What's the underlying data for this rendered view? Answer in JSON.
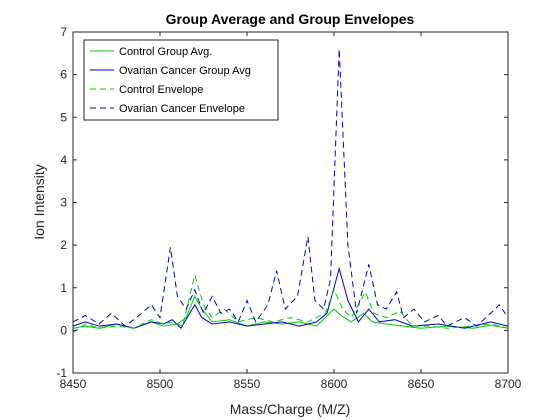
{
  "chart_data": {
    "type": "line",
    "title": "Group Average and Group Envelopes",
    "xlabel": "Mass/Charge (M/Z)",
    "ylabel": "Ion Intensity",
    "xlim": [
      8450,
      8700
    ],
    "ylim": [
      -1,
      7
    ],
    "xticks": [
      8450,
      8500,
      8550,
      8600,
      8650,
      8700
    ],
    "yticks": [
      -1,
      0,
      1,
      2,
      3,
      4,
      5,
      6,
      7
    ],
    "grid": false,
    "legend_position": "top-left",
    "series": [
      {
        "name": "Control Group Avg.",
        "color": "#00cc00",
        "dash": "solid",
        "points": [
          [
            8450,
            0.05
          ],
          [
            8457,
            0.1
          ],
          [
            8465,
            0.05
          ],
          [
            8475,
            0.15
          ],
          [
            8485,
            0.05
          ],
          [
            8495,
            0.2
          ],
          [
            8502,
            0.1
          ],
          [
            8510,
            0.15
          ],
          [
            8515,
            0.3
          ],
          [
            8520,
            0.8
          ],
          [
            8524,
            0.5
          ],
          [
            8530,
            0.2
          ],
          [
            8540,
            0.25
          ],
          [
            8550,
            0.1
          ],
          [
            8560,
            0.2
          ],
          [
            8570,
            0.15
          ],
          [
            8580,
            0.2
          ],
          [
            8590,
            0.1
          ],
          [
            8595,
            0.3
          ],
          [
            8600,
            0.5
          ],
          [
            8604,
            0.35
          ],
          [
            8610,
            0.2
          ],
          [
            8617,
            0.4
          ],
          [
            8622,
            0.2
          ],
          [
            8630,
            0.15
          ],
          [
            8640,
            0.1
          ],
          [
            8650,
            0.05
          ],
          [
            8665,
            0.1
          ],
          [
            8680,
            0.05
          ],
          [
            8690,
            0.12
          ],
          [
            8700,
            0.05
          ]
        ]
      },
      {
        "name": "Ovarian Cancer Group Avg",
        "color": "#0000cc",
        "dash": "solid",
        "points": [
          [
            8450,
            0.1
          ],
          [
            8457,
            0.2
          ],
          [
            8465,
            0.1
          ],
          [
            8475,
            0.15
          ],
          [
            8485,
            0.05
          ],
          [
            8495,
            0.2
          ],
          [
            8502,
            0.15
          ],
          [
            8507,
            0.25
          ],
          [
            8512,
            0.05
          ],
          [
            8520,
            0.6
          ],
          [
            8524,
            0.3
          ],
          [
            8530,
            0.15
          ],
          [
            8540,
            0.2
          ],
          [
            8550,
            0.1
          ],
          [
            8560,
            0.15
          ],
          [
            8570,
            0.2
          ],
          [
            8580,
            0.1
          ],
          [
            8590,
            0.2
          ],
          [
            8596,
            0.4
          ],
          [
            8603,
            1.45
          ],
          [
            8608,
            0.7
          ],
          [
            8614,
            0.2
          ],
          [
            8620,
            0.5
          ],
          [
            8626,
            0.2
          ],
          [
            8635,
            0.25
          ],
          [
            8645,
            0.1
          ],
          [
            8660,
            0.15
          ],
          [
            8675,
            0.05
          ],
          [
            8690,
            0.2
          ],
          [
            8700,
            0.1
          ]
        ]
      },
      {
        "name": "Control Envelope",
        "color": "#00cc00",
        "dash": "dashed",
        "points": [
          [
            8450,
            -0.05
          ],
          [
            8457,
            0.15
          ],
          [
            8465,
            0.05
          ],
          [
            8475,
            0.1
          ],
          [
            8485,
            0.05
          ],
          [
            8495,
            0.25
          ],
          [
            8502,
            0.15
          ],
          [
            8507,
            0.2
          ],
          [
            8513,
            0.1
          ],
          [
            8520,
            1.3
          ],
          [
            8525,
            0.6
          ],
          [
            8530,
            0.3
          ],
          [
            8537,
            0.5
          ],
          [
            8545,
            0.2
          ],
          [
            8555,
            0.3
          ],
          [
            8565,
            0.2
          ],
          [
            8575,
            0.3
          ],
          [
            8585,
            0.2
          ],
          [
            8595,
            0.4
          ],
          [
            8600,
            0.95
          ],
          [
            8605,
            0.5
          ],
          [
            8610,
            0.3
          ],
          [
            8618,
            0.9
          ],
          [
            8623,
            0.4
          ],
          [
            8630,
            0.3
          ],
          [
            8638,
            0.45
          ],
          [
            8645,
            0.1
          ],
          [
            8655,
            0.1
          ],
          [
            8665,
            0.05
          ],
          [
            8680,
            0.1
          ],
          [
            8690,
            0.15
          ],
          [
            8700,
            0.05
          ]
        ]
      },
      {
        "name": "Ovarian Cancer Envelope",
        "color": "#0000cc",
        "dash": "dashed",
        "points": [
          [
            8450,
            0.2
          ],
          [
            8457,
            0.35
          ],
          [
            8465,
            0.15
          ],
          [
            8472,
            0.4
          ],
          [
            8480,
            0.1
          ],
          [
            8488,
            0.35
          ],
          [
            8495,
            0.6
          ],
          [
            8500,
            0.3
          ],
          [
            8506,
            1.95
          ],
          [
            8510,
            0.8
          ],
          [
            8515,
            0.5
          ],
          [
            8520,
            0.95
          ],
          [
            8525,
            0.4
          ],
          [
            8530,
            0.8
          ],
          [
            8535,
            0.4
          ],
          [
            8540,
            0.5
          ],
          [
            8545,
            0.2
          ],
          [
            8550,
            0.7
          ],
          [
            8555,
            0.2
          ],
          [
            8562,
            0.6
          ],
          [
            8567,
            1.4
          ],
          [
            8572,
            0.5
          ],
          [
            8579,
            0.8
          ],
          [
            8585,
            2.2
          ],
          [
            8589,
            0.7
          ],
          [
            8594,
            0.5
          ],
          [
            8598,
            1.2
          ],
          [
            8603,
            6.6
          ],
          [
            8608,
            2.0
          ],
          [
            8613,
            0.4
          ],
          [
            8620,
            1.55
          ],
          [
            8625,
            0.6
          ],
          [
            8630,
            0.5
          ],
          [
            8636,
            0.9
          ],
          [
            8640,
            0.3
          ],
          [
            8646,
            0.5
          ],
          [
            8652,
            0.2
          ],
          [
            8660,
            0.35
          ],
          [
            8665,
            0.1
          ],
          [
            8675,
            0.3
          ],
          [
            8682,
            0.1
          ],
          [
            8690,
            0.4
          ],
          [
            8695,
            0.6
          ],
          [
            8700,
            0.3
          ]
        ]
      }
    ]
  }
}
